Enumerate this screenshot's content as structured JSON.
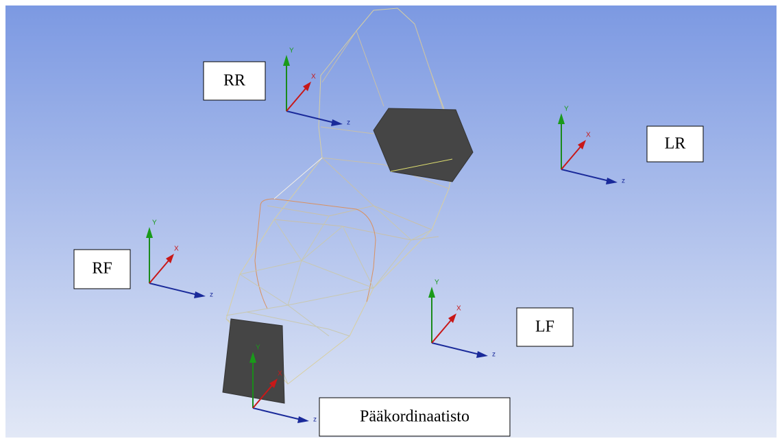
{
  "labels": {
    "rr": "RR",
    "lr": "LR",
    "rf": "RF",
    "lf": "LF",
    "main": "Pääkordinaatisto"
  },
  "axis_letters": {
    "x": "X",
    "y": "Y",
    "z": "z"
  }
}
